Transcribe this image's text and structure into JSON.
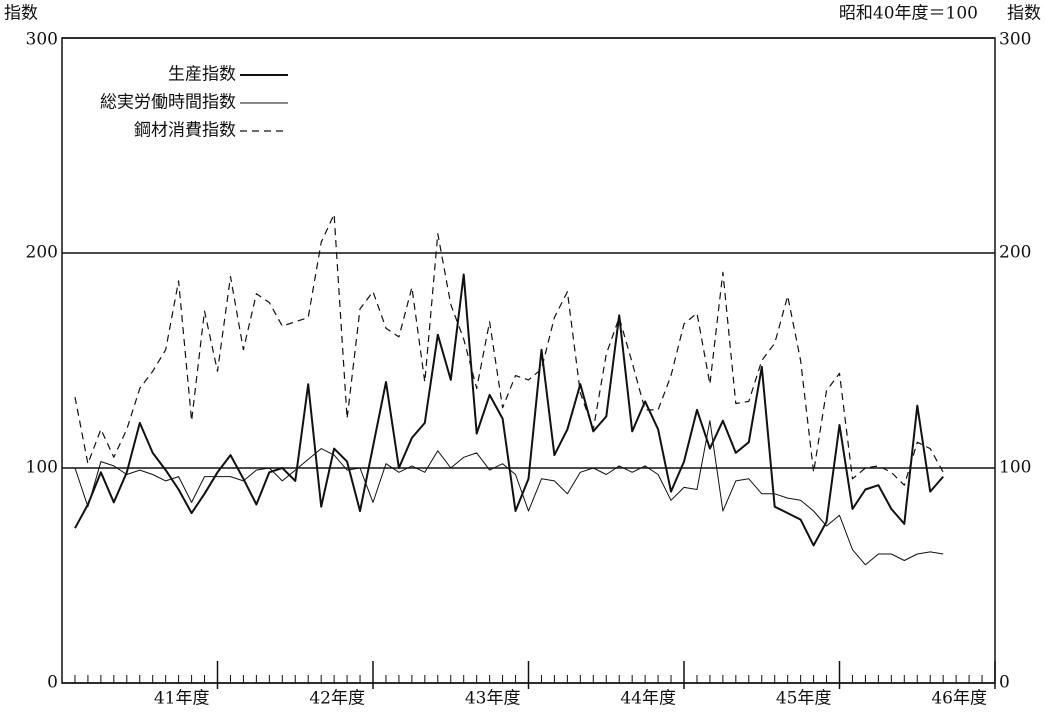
{
  "chart_data": {
    "type": "line",
    "y_label": "指数",
    "y2_label": "指数",
    "note": "昭和40年度＝100",
    "x": [
      1,
      2,
      3,
      4,
      5,
      6,
      7,
      8,
      9,
      10,
      11,
      12,
      13,
      14,
      15,
      16,
      17,
      18,
      19,
      20,
      21,
      22,
      23,
      24,
      25,
      26,
      27,
      28,
      29,
      30,
      31,
      32,
      33,
      34,
      35,
      36,
      37,
      38,
      39,
      40,
      41,
      42,
      43,
      44,
      45,
      46,
      47,
      48,
      49,
      50,
      51,
      52,
      53,
      54,
      55,
      56,
      57,
      58,
      59,
      60,
      61,
      62,
      63,
      64,
      65,
      66,
      67,
      68
    ],
    "xlim": [
      0,
      72
    ],
    "xticks": [
      {
        "value": 12,
        "label": "41年度"
      },
      {
        "value": 24,
        "label": "42年度"
      },
      {
        "value": 36,
        "label": "43年度"
      },
      {
        "value": 48,
        "label": "44年度"
      },
      {
        "value": 60,
        "label": "45年度"
      },
      {
        "value": 72,
        "label": "46年度"
      }
    ],
    "ylim": [
      0,
      300
    ],
    "yticks": [
      0,
      100,
      200,
      300
    ],
    "y2lim": [
      0,
      300
    ],
    "y2ticks": [
      0,
      100,
      200,
      300
    ],
    "grid": true,
    "legend": "upper left",
    "series": [
      {
        "name": "生産指数",
        "color": "#111111",
        "width": 2,
        "dash": "none",
        "values": [
          72,
          83,
          98,
          84,
          98,
          121,
          107,
          99,
          90,
          79,
          88,
          98,
          106,
          95,
          83,
          98,
          100,
          94,
          139,
          82,
          109,
          103,
          80,
          110,
          140,
          100,
          114,
          121,
          162,
          141,
          190,
          116,
          134,
          123,
          80,
          95,
          155,
          106,
          118,
          139,
          117,
          124,
          171,
          117,
          131,
          118,
          89,
          103,
          127,
          109,
          122,
          107,
          112,
          147,
          82,
          79,
          76,
          64,
          75,
          120,
          81,
          90,
          92,
          81,
          74,
          129,
          89,
          96
        ]
      },
      {
        "name": "総実労働時間指数",
        "color": "#111111",
        "width": 1,
        "dash": "none",
        "values": [
          100,
          82,
          103,
          101,
          97,
          99,
          97,
          94,
          96,
          84,
          96,
          96,
          96,
          94,
          99,
          100,
          94,
          99,
          104,
          109,
          106,
          99,
          100,
          84,
          102,
          98,
          101,
          98,
          108,
          100,
          105,
          107,
          99,
          102,
          97,
          80,
          95,
          94,
          88,
          98,
          100,
          97,
          101,
          98,
          101,
          97,
          85,
          91,
          90,
          122,
          80,
          94,
          95,
          88,
          88,
          86,
          85,
          80,
          73,
          78,
          62,
          55,
          60,
          60,
          57,
          60,
          61,
          60
        ]
      },
      {
        "name": "鋼材消費指数",
        "color": "#111111",
        "width": 1.2,
        "dash": "7 5",
        "values": [
          133,
          102,
          118,
          105,
          118,
          137,
          145,
          155,
          187,
          122,
          173,
          145,
          189,
          155,
          181,
          177,
          166,
          168,
          170,
          205,
          218,
          123,
          174,
          182,
          165,
          161,
          184,
          140,
          209,
          176,
          160,
          137,
          168,
          128,
          143,
          141,
          146,
          170,
          182,
          135,
          118,
          153,
          170,
          149,
          127,
          127,
          143,
          167,
          172,
          139,
          191,
          130,
          131,
          150,
          158,
          180,
          150,
          98,
          136,
          144,
          95,
          100,
          101,
          98,
          92,
          112,
          109,
          98
        ]
      }
    ]
  }
}
